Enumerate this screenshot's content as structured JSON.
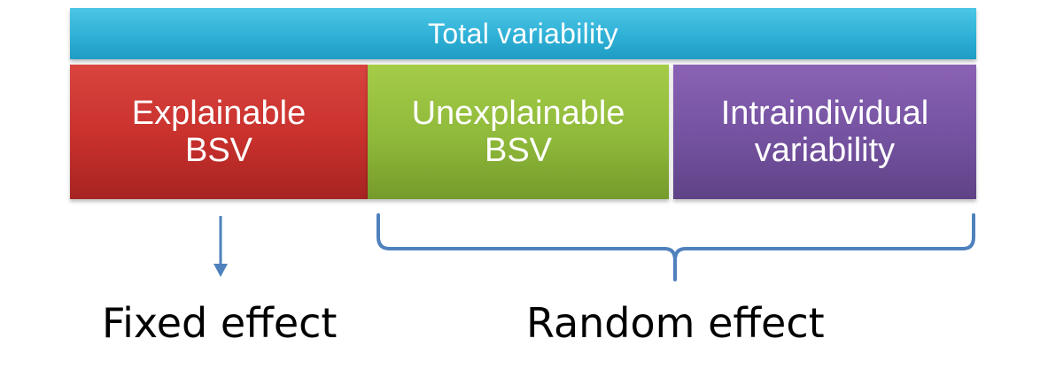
{
  "header": {
    "title": "Total variability"
  },
  "components": [
    {
      "line1": "Explainable",
      "line2": "BSV",
      "color": "#c8302c"
    },
    {
      "line1": "Unexplainable",
      "line2": "BSV",
      "color": "#8fb93a"
    },
    {
      "line1": "Intraindividual",
      "line2": "variability",
      "color": "#7452a0"
    }
  ],
  "effects": {
    "fixed": "Fixed effect",
    "random": "Random effect"
  },
  "colors": {
    "header": "#2eb0d6",
    "connector": "#4f81bd"
  }
}
